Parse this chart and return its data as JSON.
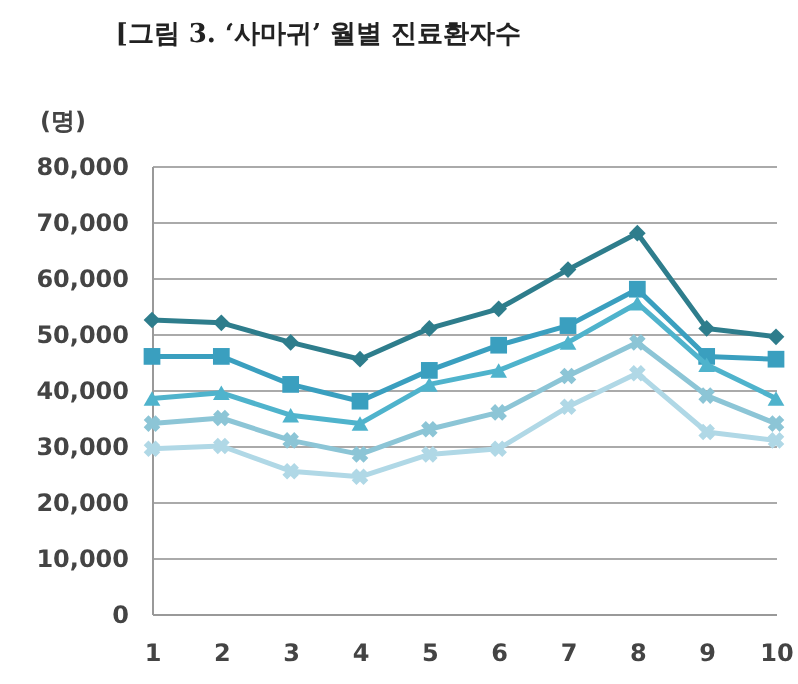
{
  "chart_data": {
    "type": "line",
    "title": "[그림 3. ‘사마귀’ 월별 진료환자수",
    "ylabel": "(명)",
    "categories": [
      "1",
      "2",
      "3",
      "4",
      "5",
      "6",
      "7",
      "8",
      "9",
      "10"
    ],
    "series": [
      {
        "color": "#2e7d8c",
        "marker": "diamond",
        "values": [
          52500,
          52000,
          48500,
          45500,
          51000,
          54500,
          61500,
          68000,
          51000,
          49500
        ]
      },
      {
        "color": "#3a9fbf",
        "marker": "square",
        "values": [
          46000,
          46000,
          41000,
          38000,
          43500,
          48000,
          51500,
          58000,
          46000,
          45500
        ]
      },
      {
        "color": "#4fb3cc",
        "marker": "triangle",
        "values": [
          38500,
          39500,
          35500,
          34000,
          41000,
          43500,
          48500,
          55500,
          44500,
          38500
        ]
      },
      {
        "color": "#8cc5d6",
        "marker": "cross",
        "values": [
          34000,
          35000,
          31000,
          28500,
          33000,
          36000,
          42500,
          48500,
          39000,
          34000
        ]
      },
      {
        "color": "#b0d8e6",
        "marker": "cross",
        "values": [
          29500,
          30000,
          25500,
          24500,
          28500,
          29500,
          37000,
          43000,
          32500,
          31000
        ]
      }
    ],
    "ylim": [
      0,
      80000
    ],
    "yticks": [
      0,
      {
        "value": 10000,
        "label": "10,000"
      },
      {
        "value": 20000,
        "label": "20,000"
      },
      {
        "value": 30000,
        "label": "30,000"
      },
      {
        "value": 40000,
        "label": "40,000"
      },
      {
        "value": 50000,
        "label": "50,000"
      },
      {
        "value": 60000,
        "label": "60,000"
      },
      {
        "value": 70000,
        "label": "70,000"
      },
      {
        "value": 80000,
        "label": "80,000"
      }
    ],
    "grid": "y",
    "legend": false
  }
}
